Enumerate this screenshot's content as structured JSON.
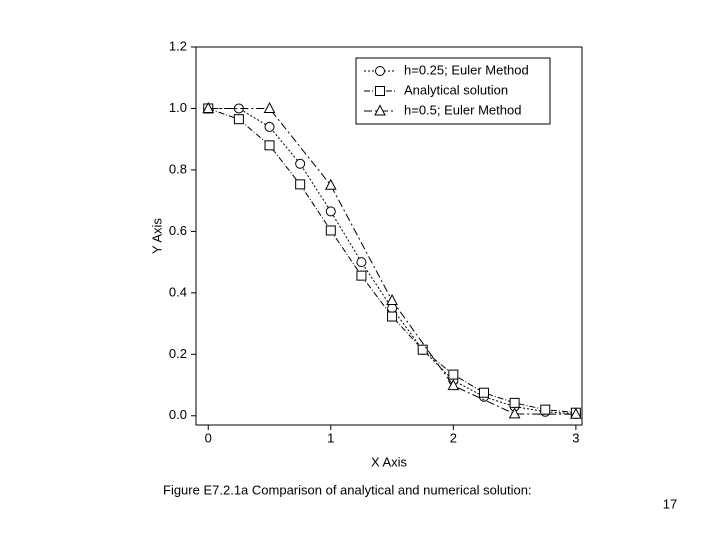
{
  "chart_data": {
    "type": "line",
    "x_label": "X Axis",
    "y_label": "Y Axis",
    "xlim": [
      -0.1,
      3.05
    ],
    "ylim": [
      -0.03,
      1.2
    ],
    "xticks": [
      0,
      1,
      2,
      3
    ],
    "yticks": [
      {
        "value": 0,
        "label": "0.0"
      },
      0.2,
      0.4,
      0.6,
      0.8,
      {
        "value": 1,
        "label": "1.0"
      },
      1.2
    ],
    "legend": "upper right",
    "series": [
      {
        "name": "h=0.25; Euler Method",
        "color": "#000000",
        "marker": "circle",
        "dash": "2,2",
        "x": [
          0,
          0.25,
          0.5,
          0.75,
          1,
          1.25,
          1.5,
          1.75,
          2,
          2.25,
          2.5,
          2.75,
          3
        ],
        "values": [
          1.0,
          1.0,
          0.94,
          0.82,
          0.665,
          0.5,
          0.35,
          0.215,
          0.115,
          0.062,
          0.03,
          0.013,
          0.006
        ]
      },
      {
        "name": "Analytical solution",
        "color": "#000000",
        "marker": "square",
        "dash": "6,2,1,2",
        "x": [
          0,
          0.25,
          0.5,
          0.75,
          1,
          1.25,
          1.5,
          1.75,
          2,
          2.25,
          2.5,
          2.75,
          3
        ],
        "values": [
          1.0,
          0.965,
          0.88,
          0.753,
          0.603,
          0.456,
          0.323,
          0.215,
          0.134,
          0.075,
          0.042,
          0.02,
          0.01
        ]
      },
      {
        "name": "h=0.5; Euler Method",
        "color": "#000000",
        "marker": "triangle",
        "dash": "8,3,2,3",
        "x": [
          0,
          0.5,
          1,
          1.5,
          2,
          2.5,
          3
        ],
        "values": [
          1.0,
          1.0,
          0.75,
          0.375,
          0.098,
          0.006,
          0.005
        ]
      }
    ]
  },
  "caption": "Figure E7.2.1a  Comparison of analytical and numerical solution:",
  "page_number": "17"
}
